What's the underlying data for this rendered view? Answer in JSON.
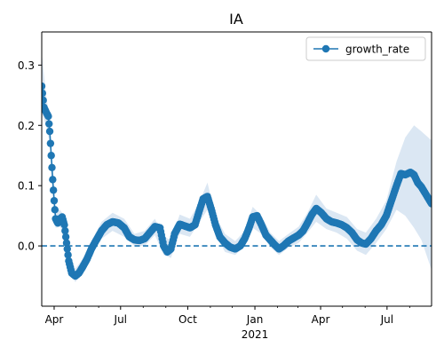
{
  "chart_data": {
    "type": "line",
    "title": "IA",
    "xlabel": "",
    "ylabel": "",
    "x_start": "2020-03-15",
    "x_end": "2021-08-31",
    "xlim": [
      "2020-03-15",
      "2021-08-31"
    ],
    "ylim": [
      -0.1,
      0.355
    ],
    "y_ticks": [
      0.0,
      0.1,
      0.2,
      0.3
    ],
    "y_tick_labels": [
      "0.0",
      "0.1",
      "0.2",
      "0.3"
    ],
    "x_ticks": [
      {
        "date": "2020-04-01",
        "label": "Apr"
      },
      {
        "date": "2020-07-01",
        "label": "Jul"
      },
      {
        "date": "2020-10-01",
        "label": "Oct"
      },
      {
        "date": "2021-01-01",
        "label": "Jan"
      },
      {
        "date": "2021-04-01",
        "label": "Apr"
      },
      {
        "date": "2021-07-01",
        "label": "Jul"
      }
    ],
    "x_minor_ticks": [
      "2020-05-01",
      "2020-06-01",
      "2020-08-01",
      "2020-09-01",
      "2020-11-01",
      "2020-12-01",
      "2021-02-01",
      "2021-03-01",
      "2021-05-01",
      "2021-06-01",
      "2021-08-01"
    ],
    "x_secondary_label": "2021",
    "legend_position": "top-right",
    "grid": false,
    "reference_line": {
      "y": 0.0,
      "style": "dashed",
      "color": "#1f77b4"
    },
    "band_color": "#dbe7f3",
    "series": [
      {
        "name": "growth_rate",
        "color": "#1f77b4",
        "marker": "circle",
        "points": [
          [
            "2020-03-15",
            0.265
          ],
          [
            "2020-03-18",
            0.23
          ],
          [
            "2020-03-21",
            0.222
          ],
          [
            "2020-03-24",
            0.215
          ],
          [
            "2020-03-26",
            0.19
          ],
          [
            "2020-03-28",
            0.15
          ],
          [
            "2020-03-30",
            0.11
          ],
          [
            "2020-04-01",
            0.075
          ],
          [
            "2020-04-03",
            0.045
          ],
          [
            "2020-04-06",
            0.038
          ],
          [
            "2020-04-09",
            0.045
          ],
          [
            "2020-04-12",
            0.048
          ],
          [
            "2020-04-15",
            0.035
          ],
          [
            "2020-04-18",
            0.005
          ],
          [
            "2020-04-21",
            -0.025
          ],
          [
            "2020-04-25",
            -0.045
          ],
          [
            "2020-04-30",
            -0.05
          ],
          [
            "2020-05-05",
            -0.045
          ],
          [
            "2020-05-10",
            -0.035
          ],
          [
            "2020-05-16",
            -0.022
          ],
          [
            "2020-05-22",
            -0.005
          ],
          [
            "2020-05-28",
            0.008
          ],
          [
            "2020-06-05",
            0.025
          ],
          [
            "2020-06-12",
            0.035
          ],
          [
            "2020-06-20",
            0.04
          ],
          [
            "2020-06-28",
            0.038
          ],
          [
            "2020-07-06",
            0.03
          ],
          [
            "2020-07-13",
            0.015
          ],
          [
            "2020-07-20",
            0.01
          ],
          [
            "2020-07-27",
            0.009
          ],
          [
            "2020-08-03",
            0.012
          ],
          [
            "2020-08-10",
            0.022
          ],
          [
            "2020-08-17",
            0.032
          ],
          [
            "2020-08-24",
            0.03
          ],
          [
            "2020-08-29",
            0.0
          ],
          [
            "2020-09-03",
            -0.01
          ],
          [
            "2020-09-08",
            -0.005
          ],
          [
            "2020-09-13",
            0.02
          ],
          [
            "2020-09-20",
            0.036
          ],
          [
            "2020-09-27",
            0.033
          ],
          [
            "2020-10-04",
            0.03
          ],
          [
            "2020-10-11",
            0.035
          ],
          [
            "2020-10-16",
            0.055
          ],
          [
            "2020-10-22",
            0.078
          ],
          [
            "2020-10-28",
            0.082
          ],
          [
            "2020-11-03",
            0.058
          ],
          [
            "2020-11-08",
            0.035
          ],
          [
            "2020-11-14",
            0.015
          ],
          [
            "2020-11-21",
            0.005
          ],
          [
            "2020-11-28",
            -0.002
          ],
          [
            "2020-12-05",
            -0.005
          ],
          [
            "2020-12-12",
            0.0
          ],
          [
            "2020-12-18",
            0.012
          ],
          [
            "2020-12-24",
            0.03
          ],
          [
            "2020-12-29",
            0.048
          ],
          [
            "2021-01-04",
            0.05
          ],
          [
            "2021-01-10",
            0.035
          ],
          [
            "2021-01-16",
            0.018
          ],
          [
            "2021-01-22",
            0.01
          ],
          [
            "2021-01-28",
            0.002
          ],
          [
            "2021-02-03",
            -0.005
          ],
          [
            "2021-02-09",
            0.0
          ],
          [
            "2021-02-16",
            0.008
          ],
          [
            "2021-02-23",
            0.013
          ],
          [
            "2021-03-02",
            0.018
          ],
          [
            "2021-03-08",
            0.025
          ],
          [
            "2021-03-14",
            0.038
          ],
          [
            "2021-03-20",
            0.052
          ],
          [
            "2021-03-26",
            0.062
          ],
          [
            "2021-04-02",
            0.055
          ],
          [
            "2021-04-09",
            0.045
          ],
          [
            "2021-04-16",
            0.04
          ],
          [
            "2021-04-23",
            0.038
          ],
          [
            "2021-04-30",
            0.035
          ],
          [
            "2021-05-07",
            0.03
          ],
          [
            "2021-05-14",
            0.022
          ],
          [
            "2021-05-21",
            0.01
          ],
          [
            "2021-05-27",
            0.005
          ],
          [
            "2021-06-02",
            0.003
          ],
          [
            "2021-06-09",
            0.012
          ],
          [
            "2021-06-16",
            0.025
          ],
          [
            "2021-06-23",
            0.035
          ],
          [
            "2021-06-30",
            0.05
          ],
          [
            "2021-07-07",
            0.075
          ],
          [
            "2021-07-14",
            0.1
          ],
          [
            "2021-07-20",
            0.12
          ],
          [
            "2021-07-26",
            0.118
          ],
          [
            "2021-08-02",
            0.122
          ],
          [
            "2021-08-07",
            0.118
          ],
          [
            "2021-08-12",
            0.105
          ],
          [
            "2021-08-17",
            0.098
          ],
          [
            "2021-08-22",
            0.088
          ],
          [
            "2021-08-27",
            0.078
          ],
          [
            "2021-08-31",
            0.07
          ]
        ],
        "band_lower": [
          [
            "2020-03-15",
            0.22
          ],
          [
            "2020-03-21",
            0.2
          ],
          [
            "2020-03-26",
            0.17
          ],
          [
            "2020-03-30",
            0.095
          ],
          [
            "2020-04-03",
            0.03
          ],
          [
            "2020-04-09",
            0.032
          ],
          [
            "2020-04-15",
            0.02
          ],
          [
            "2020-04-21",
            -0.04
          ],
          [
            "2020-04-30",
            -0.06
          ],
          [
            "2020-05-10",
            -0.045
          ],
          [
            "2020-05-22",
            -0.015
          ],
          [
            "2020-06-05",
            0.012
          ],
          [
            "2020-06-20",
            0.025
          ],
          [
            "2020-07-06",
            0.015
          ],
          [
            "2020-07-20",
            0.0
          ],
          [
            "2020-08-03",
            0.0
          ],
          [
            "2020-08-17",
            0.018
          ],
          [
            "2020-08-29",
            -0.015
          ],
          [
            "2020-09-08",
            -0.02
          ],
          [
            "2020-09-20",
            0.02
          ],
          [
            "2020-10-04",
            0.015
          ],
          [
            "2020-10-16",
            0.038
          ],
          [
            "2020-10-28",
            0.06
          ],
          [
            "2020-11-08",
            0.02
          ],
          [
            "2020-11-21",
            -0.01
          ],
          [
            "2020-12-05",
            -0.015
          ],
          [
            "2020-12-18",
            0.0
          ],
          [
            "2020-12-29",
            0.03
          ],
          [
            "2021-01-10",
            0.02
          ],
          [
            "2021-01-22",
            -0.002
          ],
          [
            "2021-02-03",
            -0.015
          ],
          [
            "2021-02-16",
            -0.003
          ],
          [
            "2021-03-02",
            0.005
          ],
          [
            "2021-03-14",
            0.022
          ],
          [
            "2021-03-26",
            0.04
          ],
          [
            "2021-04-09",
            0.028
          ],
          [
            "2021-04-23",
            0.022
          ],
          [
            "2021-05-07",
            0.012
          ],
          [
            "2021-05-21",
            -0.008
          ],
          [
            "2021-06-02",
            -0.015
          ],
          [
            "2021-06-16",
            0.005
          ],
          [
            "2021-06-30",
            0.028
          ],
          [
            "2021-07-14",
            0.06
          ],
          [
            "2021-07-26",
            0.05
          ],
          [
            "2021-08-07",
            0.03
          ],
          [
            "2021-08-17",
            0.01
          ],
          [
            "2021-08-31",
            -0.04
          ]
        ],
        "band_upper": [
          [
            "2020-03-15",
            0.32
          ],
          [
            "2020-03-21",
            0.25
          ],
          [
            "2020-03-26",
            0.21
          ],
          [
            "2020-03-30",
            0.13
          ],
          [
            "2020-04-03",
            0.06
          ],
          [
            "2020-04-09",
            0.06
          ],
          [
            "2020-04-15",
            0.05
          ],
          [
            "2020-04-21",
            -0.01
          ],
          [
            "2020-04-30",
            -0.038
          ],
          [
            "2020-05-10",
            -0.022
          ],
          [
            "2020-05-22",
            0.008
          ],
          [
            "2020-06-05",
            0.04
          ],
          [
            "2020-06-20",
            0.055
          ],
          [
            "2020-07-06",
            0.045
          ],
          [
            "2020-07-20",
            0.02
          ],
          [
            "2020-08-03",
            0.025
          ],
          [
            "2020-08-17",
            0.045
          ],
          [
            "2020-08-29",
            0.015
          ],
          [
            "2020-09-08",
            0.01
          ],
          [
            "2020-09-20",
            0.052
          ],
          [
            "2020-10-04",
            0.045
          ],
          [
            "2020-10-16",
            0.07
          ],
          [
            "2020-10-28",
            0.105
          ],
          [
            "2020-11-08",
            0.05
          ],
          [
            "2020-11-21",
            0.02
          ],
          [
            "2020-12-05",
            0.008
          ],
          [
            "2020-12-18",
            0.025
          ],
          [
            "2020-12-29",
            0.065
          ],
          [
            "2021-01-10",
            0.05
          ],
          [
            "2021-01-22",
            0.022
          ],
          [
            "2021-02-03",
            0.008
          ],
          [
            "2021-02-16",
            0.02
          ],
          [
            "2021-03-02",
            0.032
          ],
          [
            "2021-03-14",
            0.055
          ],
          [
            "2021-03-26",
            0.085
          ],
          [
            "2021-04-09",
            0.062
          ],
          [
            "2021-04-23",
            0.055
          ],
          [
            "2021-05-07",
            0.048
          ],
          [
            "2021-05-21",
            0.028
          ],
          [
            "2021-06-02",
            0.022
          ],
          [
            "2021-06-16",
            0.045
          ],
          [
            "2021-06-30",
            0.075
          ],
          [
            "2021-07-14",
            0.14
          ],
          [
            "2021-07-26",
            0.18
          ],
          [
            "2021-08-07",
            0.2
          ],
          [
            "2021-08-17",
            0.19
          ],
          [
            "2021-08-31",
            0.175
          ]
        ]
      }
    ]
  }
}
